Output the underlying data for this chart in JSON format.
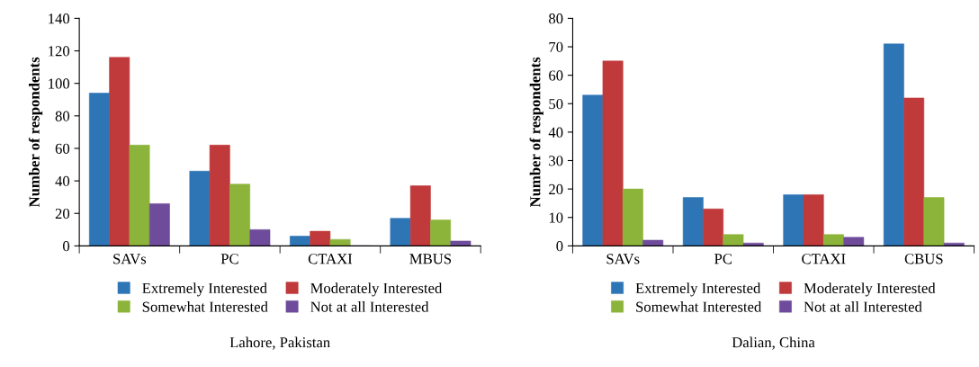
{
  "chart_data": [
    {
      "type": "bar",
      "title": "Lahore, Pakistan",
      "ylabel": "Number of respondents",
      "categories": [
        "SAVs",
        "PC",
        "CTAXI",
        "MBUS"
      ],
      "ylim": [
        0,
        140
      ],
      "yticks": [
        0,
        20,
        40,
        60,
        80,
        100,
        120,
        140
      ],
      "legend": "bottom",
      "series": [
        {
          "name": "Extremely Interested",
          "color": "#2e75b6",
          "values": [
            94,
            46,
            6,
            17
          ]
        },
        {
          "name": "Moderately Interested",
          "color": "#c0393b",
          "values": [
            116,
            62,
            9,
            37
          ]
        },
        {
          "name": "Somewhat Interested",
          "color": "#8db43a",
          "values": [
            62,
            38,
            4,
            16
          ]
        },
        {
          "name": "Not at all Interested",
          "color": "#6f4c9b",
          "values": [
            26,
            10,
            0,
            3
          ]
        }
      ]
    },
    {
      "type": "bar",
      "title": "Dalian, China",
      "ylabel": "Number of respondents",
      "categories": [
        "SAVs",
        "PC",
        "CTAXI",
        "CBUS"
      ],
      "ylim": [
        0,
        80
      ],
      "yticks": [
        0,
        10,
        20,
        30,
        40,
        50,
        60,
        70,
        80
      ],
      "legend": "bottom",
      "series": [
        {
          "name": "Extremely Interested",
          "color": "#2e75b6",
          "values": [
            53,
            17,
            18,
            71
          ]
        },
        {
          "name": "Moderately Interested",
          "color": "#c0393b",
          "values": [
            65,
            13,
            18,
            52
          ]
        },
        {
          "name": "Somewhat Interested",
          "color": "#8db43a",
          "values": [
            20,
            4,
            4,
            17
          ]
        },
        {
          "name": "Not at all Interested",
          "color": "#6f4c9b",
          "values": [
            2,
            1,
            3,
            1
          ]
        }
      ]
    }
  ]
}
